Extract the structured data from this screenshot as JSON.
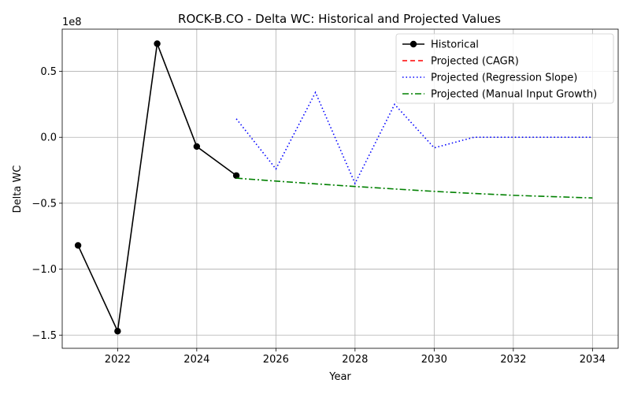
{
  "chart_data": {
    "type": "line",
    "title": "ROCK-B.CO - Delta WC: Historical and Projected Values",
    "xlabel": "Year",
    "ylabel": "Delta WC",
    "y_offset_label": "1e8",
    "xlim": [
      2020.6,
      2034.65
    ],
    "ylim": [
      -160000000,
      82000000
    ],
    "x_ticks": [
      2022,
      2024,
      2026,
      2028,
      2030,
      2032,
      2034
    ],
    "x_tick_labels": [
      "2022",
      "2024",
      "2026",
      "2028",
      "2030",
      "2032",
      "2034"
    ],
    "y_ticks": [
      -150000000,
      -100000000,
      -50000000,
      0,
      50000000
    ],
    "y_tick_labels": [
      "−1.5",
      "−1.0",
      "−0.5",
      "0.0",
      "0.5"
    ],
    "grid": true,
    "legend_position": "top-right",
    "series": [
      {
        "name": "Historical",
        "color": "#000000",
        "dash": "solid",
        "marker": "circle",
        "x": [
          2021,
          2022,
          2023,
          2024,
          2025
        ],
        "y": [
          -82000000,
          -147000000,
          71000000,
          -7000000,
          -29000000
        ]
      },
      {
        "name": "Projected (CAGR)",
        "color": "#ff0000",
        "dash": "dashed",
        "marker": "none",
        "x": [],
        "y": []
      },
      {
        "name": "Projected (Regression Slope)",
        "color": "#0000ff",
        "dash": "dotted",
        "marker": "none",
        "x": [
          2025,
          2026,
          2027,
          2028,
          2029,
          2030,
          2031,
          2032,
          2033,
          2034
        ],
        "y": [
          14000000,
          -24000000,
          34000000,
          -35000000,
          25000000,
          -8000000,
          0,
          0,
          0,
          0
        ]
      },
      {
        "name": "Projected (Manual Input Growth)",
        "color": "#008000",
        "dash": "dashdot",
        "marker": "none",
        "x": [
          2025,
          2026,
          2027,
          2028,
          2029,
          2030,
          2031,
          2032,
          2033,
          2034
        ],
        "y": [
          -31000000,
          -33200000,
          -35300000,
          -37300000,
          -39200000,
          -41000000,
          -42600000,
          -44000000,
          -45000000,
          -46000000
        ]
      }
    ]
  }
}
